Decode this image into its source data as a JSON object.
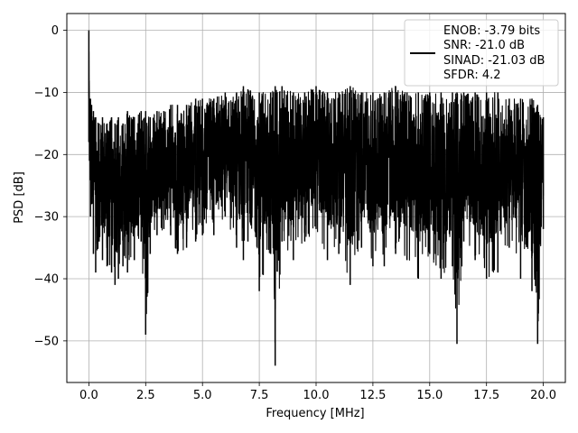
{
  "chart_data": {
    "type": "line",
    "xlabel": "Frequency [MHz]",
    "ylabel": "PSD [dB]",
    "xlim": [
      -0.97,
      20.97
    ],
    "ylim": [
      -56.7,
      2.7
    ],
    "xticks": [
      0.0,
      2.5,
      5.0,
      7.5,
      10.0,
      12.5,
      15.0,
      17.5,
      20.0
    ],
    "xtick_labels": [
      "0.0",
      "2.5",
      "5.0",
      "7.5",
      "10.0",
      "12.5",
      "15.0",
      "17.5",
      "20.0"
    ],
    "yticks": [
      0,
      -10,
      -20,
      -30,
      -40,
      -50
    ],
    "ytick_labels": [
      "0",
      "−10",
      "−20",
      "−30",
      "−40",
      "−50"
    ],
    "grid": true,
    "legend": {
      "placement": "top-right",
      "entries": [
        "ENOB: -3.79 bits",
        "SNR: -21.0 dB",
        "SINAD: -21.03 dB",
        "SFDR: 4.2"
      ]
    },
    "series": [
      {
        "color": "#000000",
        "x": [
          0.0,
          0.03,
          0.07,
          0.12,
          0.2,
          0.3,
          0.45,
          0.6,
          0.8,
          1.0,
          1.15,
          1.3,
          1.5,
          1.7,
          2.0,
          2.3,
          2.5,
          2.7,
          3.0,
          3.3,
          3.6,
          3.9,
          4.3,
          4.7,
          5.0,
          5.5,
          6.0,
          6.5,
          6.8,
          7.0,
          7.5,
          8.0,
          8.2,
          8.5,
          9.0,
          9.5,
          10.0,
          10.5,
          11.0,
          11.5,
          12.0,
          12.5,
          13.0,
          13.5,
          14.0,
          14.5,
          15.0,
          15.5,
          16.0,
          16.2,
          16.5,
          17.0,
          17.5,
          18.0,
          18.5,
          19.0,
          19.5,
          19.75,
          20.0
        ],
        "peak": [
          0.0,
          -12.0,
          -11.0,
          -12.0,
          -13.0,
          -14.0,
          -15.0,
          -14.0,
          -15.0,
          -14.0,
          -15.0,
          -14.0,
          -15.0,
          -13.0,
          -14.0,
          -13.0,
          -13.0,
          -14.0,
          -13.0,
          -13.0,
          -12.0,
          -12.0,
          -12.0,
          -11.0,
          -11.0,
          -11.0,
          -10.0,
          -10.0,
          -9.0,
          -9.5,
          -10.0,
          -10.0,
          -9.0,
          -9.0,
          -10.0,
          -10.0,
          -9.0,
          -10.0,
          -10.0,
          -9.0,
          -10.0,
          -10.0,
          -10.0,
          -9.0,
          -10.0,
          -10.0,
          -10.0,
          -10.0,
          -10.0,
          -10.0,
          -10.0,
          -10.0,
          -10.0,
          -10.0,
          -11.0,
          -11.0,
          -11.0,
          -12.0,
          -14.0
        ],
        "trough": [
          -18.0,
          -21.0,
          -30.0,
          -28.0,
          -36.0,
          -39.0,
          -34.0,
          -37.0,
          -38.0,
          -39.0,
          -41.0,
          -40.0,
          -38.0,
          -39.0,
          -37.0,
          -34.0,
          -49.0,
          -36.0,
          -33.0,
          -32.0,
          -33.0,
          -36.0,
          -35.0,
          -34.0,
          -33.0,
          -33.0,
          -30.0,
          -35.0,
          -37.0,
          -34.0,
          -42.0,
          -36.0,
          -54.0,
          -34.0,
          -37.0,
          -34.0,
          -32.0,
          -37.0,
          -36.0,
          -41.0,
          -35.0,
          -38.0,
          -38.0,
          -36.0,
          -37.0,
          -40.0,
          -36.0,
          -40.0,
          -38.0,
          -50.5,
          -34.0,
          -37.0,
          -40.0,
          -39.0,
          -35.0,
          -40.0,
          -42.0,
          -50.5,
          -32.0
        ]
      }
    ]
  }
}
